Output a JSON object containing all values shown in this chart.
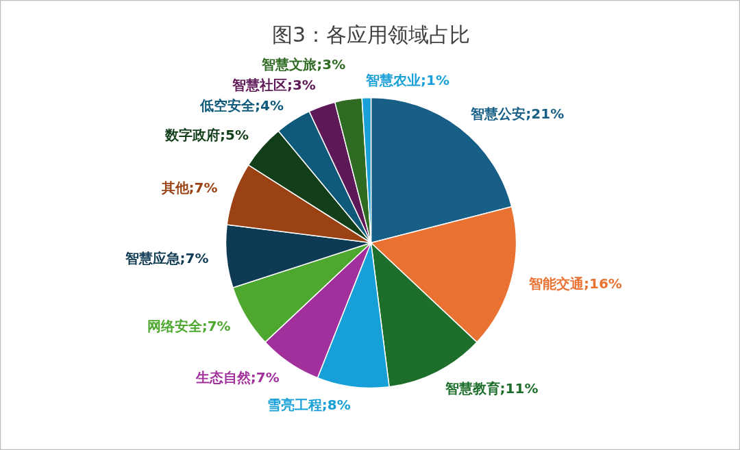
{
  "chart_data": {
    "type": "pie",
    "title": "图3：各应用领域占比",
    "categories": [
      "智慧公安",
      "智能交通",
      "智慧教育",
      "雪亮工程",
      "生态自然",
      "网络安全",
      "智慧应急",
      "其他",
      "数字政府",
      "低空安全",
      "智慧社区",
      "智慧文旅",
      "智慧农业"
    ],
    "values": [
      21,
      16,
      11,
      8,
      7,
      7,
      7,
      7,
      5,
      4,
      3,
      3,
      1
    ],
    "value_labels": [
      "21%",
      "16%",
      "11%",
      "8%",
      "7%",
      "7%",
      "7%",
      "7%",
      "5%",
      "4%",
      "3%",
      "3%",
      "1%"
    ],
    "colors": [
      "#175f86",
      "#e97132",
      "#1e6e2b",
      "#17a0d7",
      "#a2309c",
      "#4ea72e",
      "#0e3b53",
      "#9a4214",
      "#123f1a",
      "#0f5a7b",
      "#5d1857",
      "#2f6b23",
      "#1aa0d8"
    ],
    "data_labels": true
  }
}
